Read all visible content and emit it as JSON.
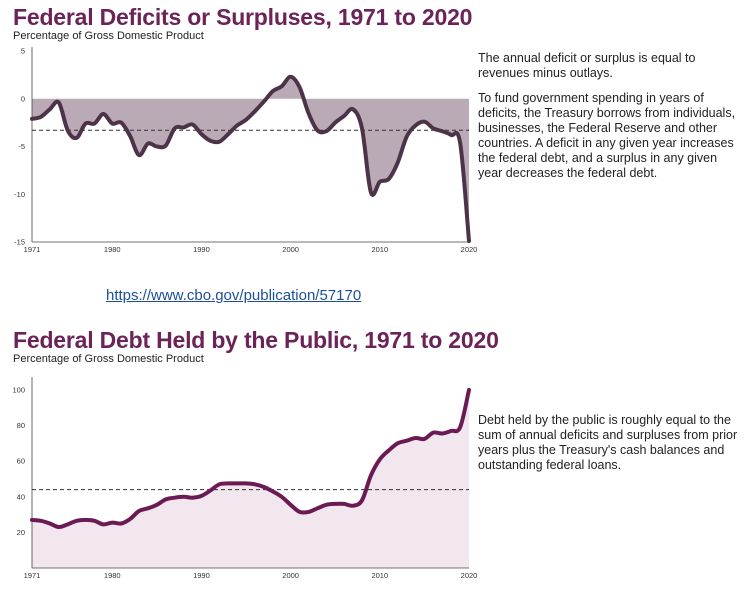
{
  "link": {
    "text": "https://www.cbo.gov/publication/57170"
  },
  "chart_data": [
    {
      "type": "area",
      "title": "Federal Deficits or Surpluses, 1971 to 2020",
      "subtitle": "Percentage of Gross Domestic Product",
      "xlabel": "",
      "ylabel": "",
      "xlim": [
        1971,
        2020
      ],
      "ylim": [
        -15,
        5
      ],
      "yticks": [
        5,
        0,
        -5,
        -10,
        -15
      ],
      "xticks": [
        1971,
        1980,
        1990,
        2000,
        2010,
        2020
      ],
      "reference_line": -3.3,
      "grid": false,
      "colors": {
        "line": "#4d3348",
        "fill": "#b9aab5",
        "reference": "#333333"
      },
      "x": [
        1971,
        1972,
        1973,
        1974,
        1975,
        1976,
        1977,
        1978,
        1979,
        1980,
        1981,
        1982,
        1983,
        1984,
        1985,
        1986,
        1987,
        1988,
        1989,
        1990,
        1991,
        1992,
        1993,
        1994,
        1995,
        1996,
        1997,
        1998,
        1999,
        2000,
        2001,
        2002,
        2003,
        2004,
        2005,
        2006,
        2007,
        2008,
        2009,
        2010,
        2011,
        2012,
        2013,
        2014,
        2015,
        2016,
        2017,
        2018,
        2019,
        2020
      ],
      "values": [
        -2.1,
        -1.9,
        -1.1,
        -0.4,
        -3.3,
        -4.1,
        -2.6,
        -2.6,
        -1.6,
        -2.6,
        -2.5,
        -3.9,
        -5.9,
        -4.7,
        -5.0,
        -4.9,
        -3.1,
        -3.0,
        -2.7,
        -3.7,
        -4.4,
        -4.5,
        -3.7,
        -2.8,
        -2.2,
        -1.3,
        -0.3,
        0.8,
        1.3,
        2.3,
        1.2,
        -1.5,
        -3.3,
        -3.4,
        -2.5,
        -1.8,
        -1.1,
        -3.1,
        -9.8,
        -8.7,
        -8.4,
        -6.7,
        -4.0,
        -2.8,
        -2.4,
        -3.1,
        -3.4,
        -3.8,
        -4.6,
        -14.9
      ]
    },
    {
      "type": "area",
      "title": "Federal Debt Held by the Public, 1971 to 2020",
      "subtitle": "Percentage of Gross Domestic Product",
      "xlabel": "",
      "ylabel": "",
      "xlim": [
        1971,
        2020
      ],
      "ylim": [
        0,
        105
      ],
      "yticks": [
        100,
        80,
        60,
        40,
        20
      ],
      "xticks": [
        1971,
        1980,
        1990,
        2000,
        2010,
        2020
      ],
      "reference_line": 44,
      "grid": false,
      "colors": {
        "line": "#6b1a54",
        "fill": "#f2e6ef",
        "reference": "#333333"
      },
      "x": [
        1971,
        1972,
        1973,
        1974,
        1975,
        1976,
        1977,
        1978,
        1979,
        1980,
        1981,
        1982,
        1983,
        1984,
        1985,
        1986,
        1987,
        1988,
        1989,
        1990,
        1991,
        1992,
        1993,
        1994,
        1995,
        1996,
        1997,
        1998,
        1999,
        2000,
        2001,
        2002,
        2003,
        2004,
        2005,
        2006,
        2007,
        2008,
        2009,
        2010,
        2011,
        2012,
        2013,
        2014,
        2015,
        2016,
        2017,
        2018,
        2019,
        2020
      ],
      "values": [
        27,
        26.5,
        25,
        23,
        24.5,
        26.5,
        27,
        26.5,
        24.5,
        25.5,
        25,
        27.5,
        32,
        33.5,
        35.5,
        38.5,
        39.5,
        40,
        39.5,
        40.5,
        43.5,
        47,
        47.5,
        47.5,
        47.5,
        47,
        45.5,
        43,
        40,
        35.5,
        31.5,
        31.5,
        33.5,
        35.5,
        36,
        36,
        35,
        38,
        52,
        61,
        66,
        70,
        71.5,
        73,
        72.5,
        76,
        75.5,
        77,
        79,
        100
      ]
    }
  ],
  "descriptions": {
    "chart1": [
      "The annual deficit or surplus is equal to revenues minus outlays.",
      "To fund government spending in years of deficits, the Treasury borrows from individuals, businesses, the Federal Reserve and other countries. A deficit in any given year increases the federal debt, and a surplus in any given year decreases the federal debt."
    ],
    "chart2": [
      "Debt held by the public is roughly equal to the sum of annual deficits and surpluses from prior years plus the Treasury's cash balances and outstanding federal loans."
    ]
  }
}
